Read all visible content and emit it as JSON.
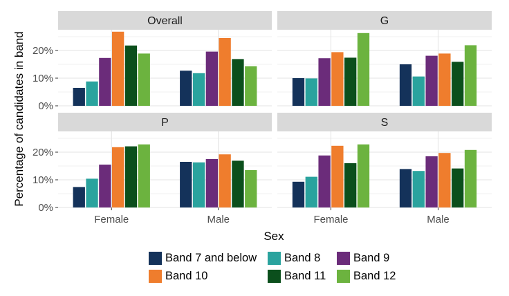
{
  "chart_data": {
    "type": "bar",
    "xlabel": "Sex",
    "ylabel": "Percentage of candidates in band",
    "categories": [
      "Female",
      "Male"
    ],
    "ylim": [
      0,
      27.5
    ],
    "yticks": [
      "0%",
      "10%",
      "20%"
    ],
    "grid": true,
    "legend_position": "bottom",
    "series_names": [
      "Band 7 and below",
      "Band 8",
      "Band 9",
      "Band 10",
      "Band 11",
      "Band 12"
    ],
    "series_colors": [
      "#14325a",
      "#2aa39e",
      "#6b2c7a",
      "#ef7d2d",
      "#0b4f1c",
      "#6cb33f"
    ],
    "facets": [
      {
        "title": "Overall",
        "values": {
          "Female": [
            6.5,
            8.8,
            17.3,
            26.8,
            21.8,
            18.9
          ],
          "Male": [
            12.7,
            11.8,
            19.6,
            24.5,
            16.9,
            14.3
          ]
        }
      },
      {
        "title": "G",
        "values": {
          "Female": [
            10.0,
            9.9,
            17.2,
            19.4,
            17.4,
            26.3
          ],
          "Male": [
            15.0,
            10.6,
            18.1,
            18.9,
            15.9,
            21.9
          ]
        }
      },
      {
        "title": "P",
        "values": {
          "Female": [
            7.4,
            10.4,
            15.5,
            21.8,
            22.1,
            22.8
          ],
          "Male": [
            16.5,
            16.3,
            17.5,
            19.2,
            16.9,
            13.5
          ]
        }
      },
      {
        "title": "S",
        "values": {
          "Female": [
            9.3,
            11.1,
            18.8,
            22.3,
            16.0,
            22.8
          ],
          "Male": [
            13.9,
            13.2,
            18.5,
            19.7,
            14.1,
            20.8
          ]
        }
      }
    ]
  }
}
